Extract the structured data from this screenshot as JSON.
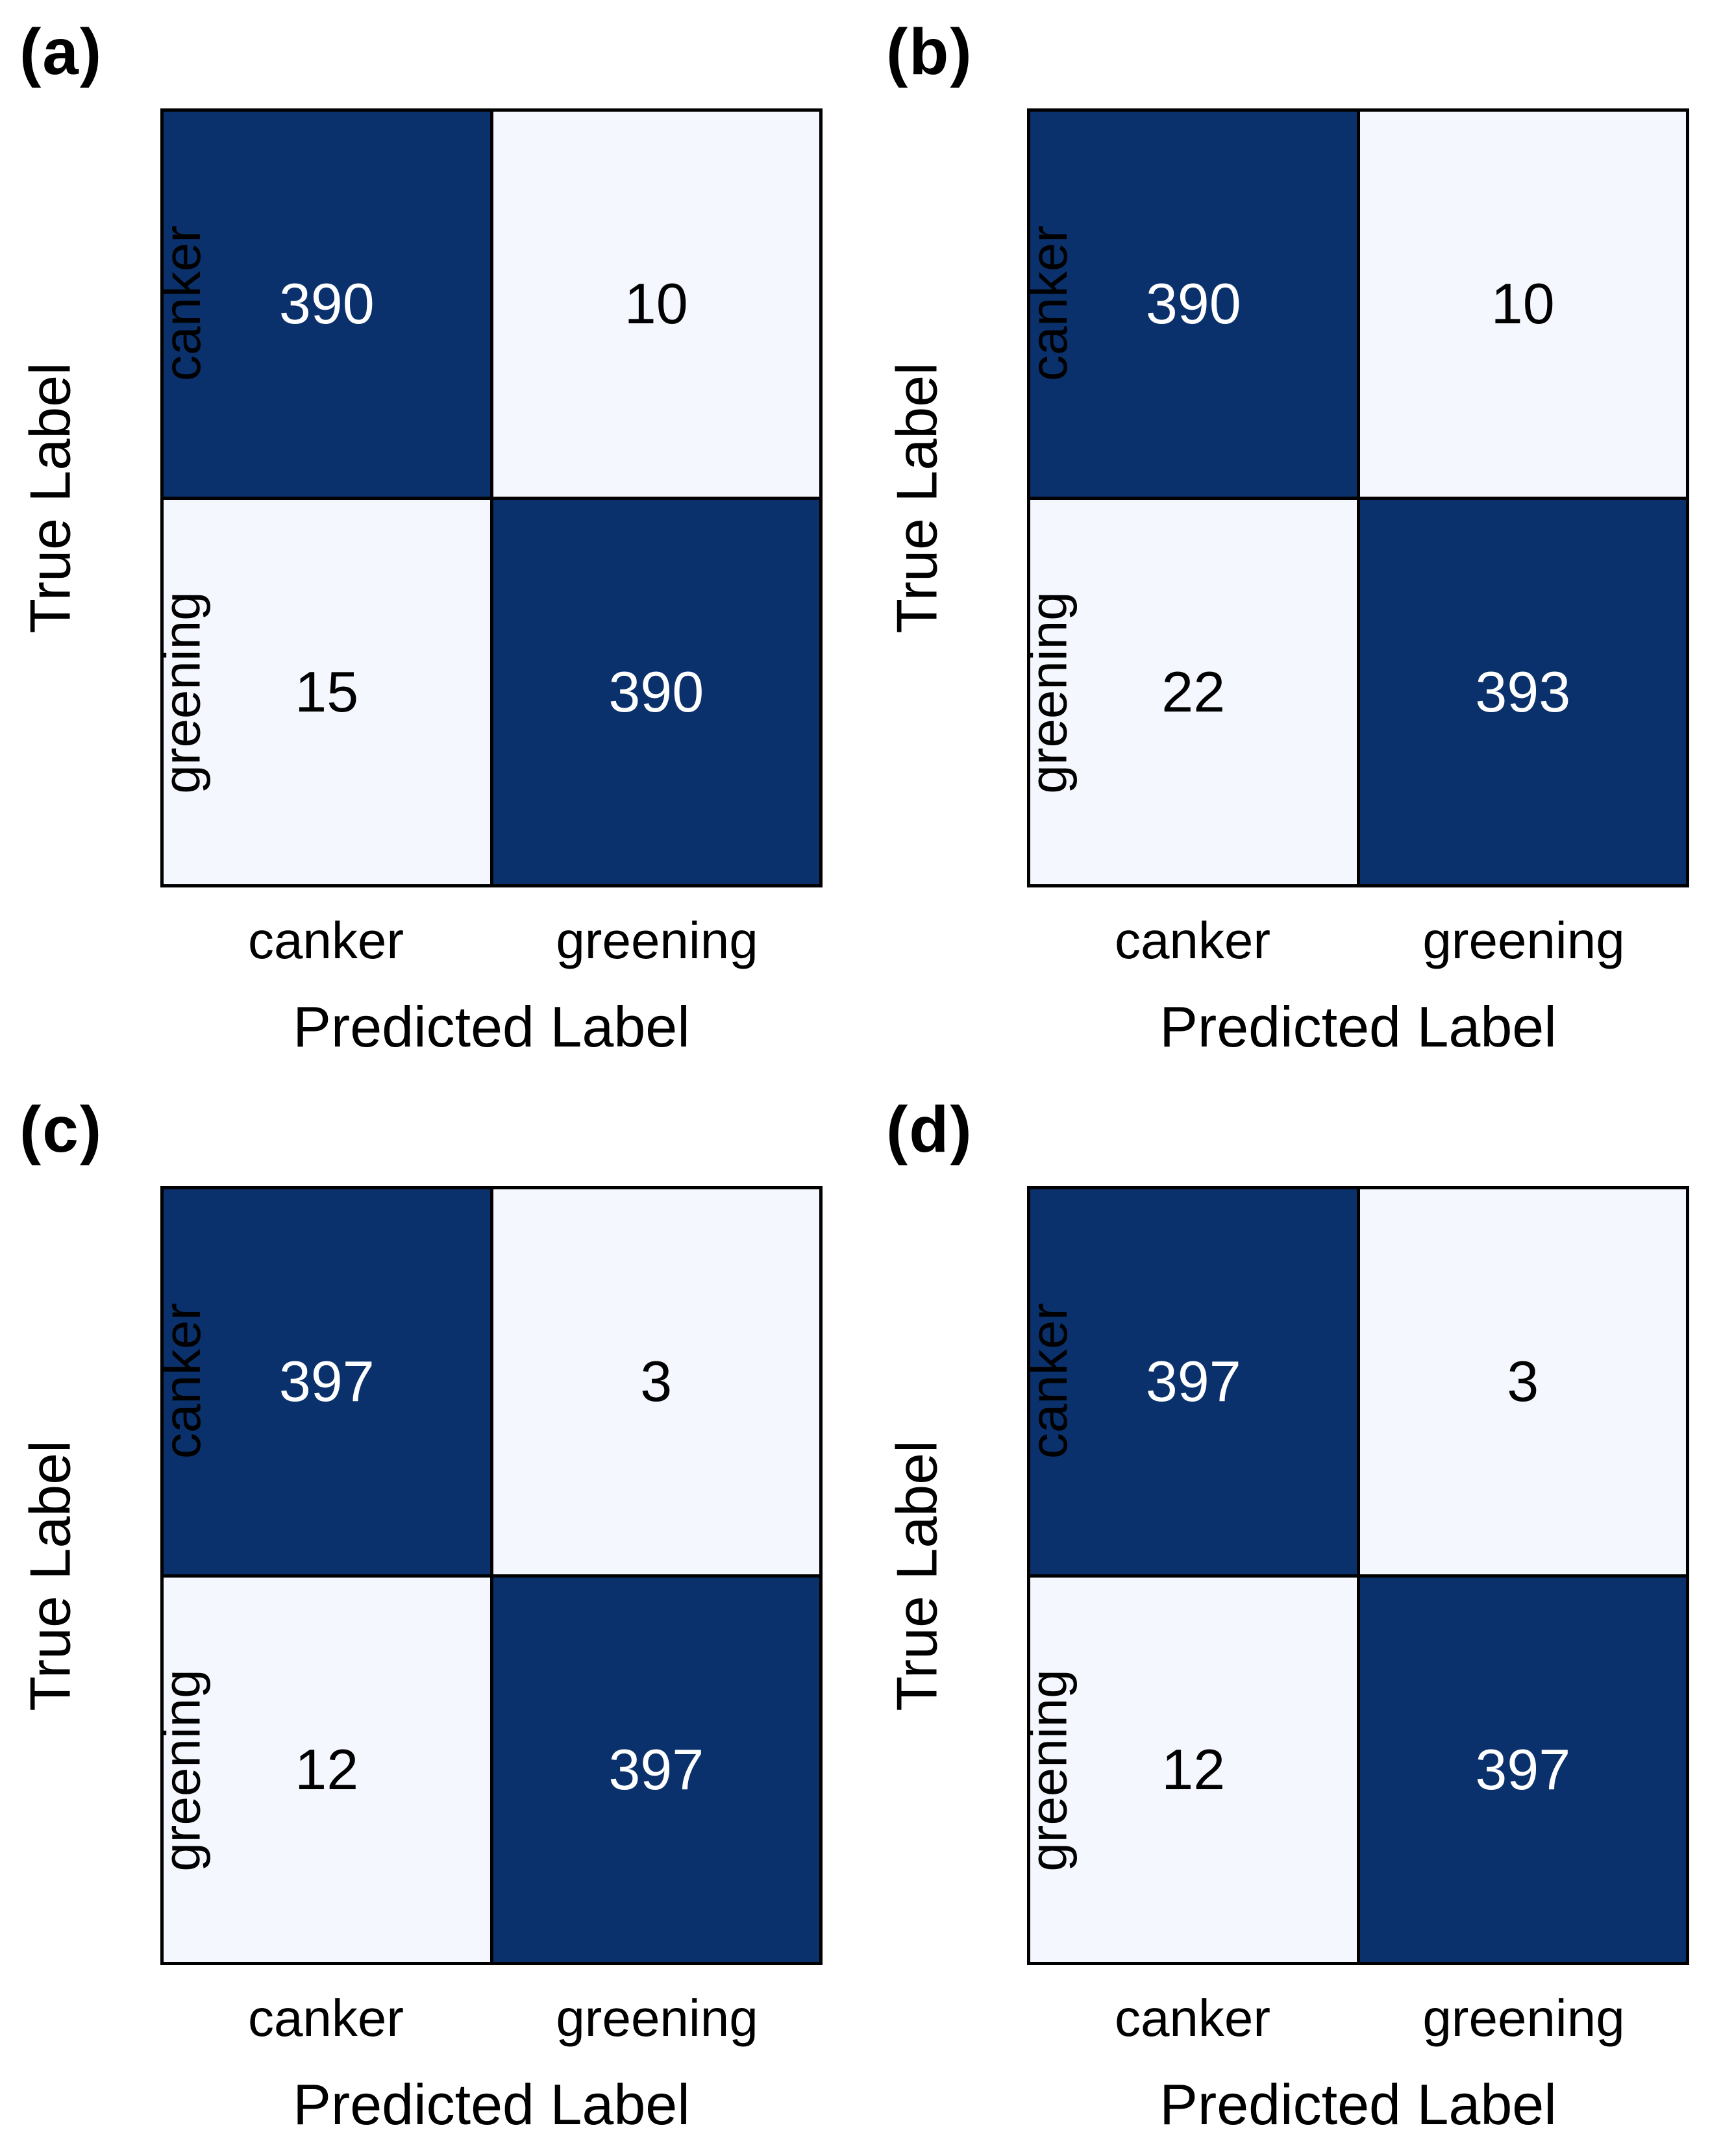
{
  "figure": {
    "background": "#ffffff",
    "colors": {
      "dark_cell": "#0a316b",
      "light_cell": "#f4f7fd",
      "grid_line": "#000000",
      "text_on_dark": "#ffffff",
      "text_on_light": "#000000"
    },
    "axis": {
      "x_title": "Predicted Label",
      "y_title": "True Label",
      "x_ticks": [
        "canker",
        "greening"
      ],
      "y_ticks": [
        "canker",
        "greening"
      ]
    },
    "panels": [
      {
        "label": "(a)",
        "matrix": [
          [
            390,
            10
          ],
          [
            15,
            390
          ]
        ]
      },
      {
        "label": "(b)",
        "matrix": [
          [
            390,
            10
          ],
          [
            22,
            393
          ]
        ]
      },
      {
        "label": "(c)",
        "matrix": [
          [
            397,
            3
          ],
          [
            12,
            397
          ]
        ]
      },
      {
        "label": "(d)",
        "matrix": [
          [
            397,
            3
          ],
          [
            12,
            397
          ]
        ]
      }
    ]
  },
  "chart_data": [
    {
      "type": "heatmap",
      "title": "(a)",
      "xlabel": "Predicted Label",
      "ylabel": "True Label",
      "x_categories": [
        "canker",
        "greening"
      ],
      "y_categories": [
        "canker",
        "greening"
      ],
      "values": [
        [
          390,
          10
        ],
        [
          15,
          390
        ]
      ],
      "colormap": "Blues",
      "legend": "none",
      "grid": "cell-borders"
    },
    {
      "type": "heatmap",
      "title": "(b)",
      "xlabel": "Predicted Label",
      "ylabel": "True Label",
      "x_categories": [
        "canker",
        "greening"
      ],
      "y_categories": [
        "canker",
        "greening"
      ],
      "values": [
        [
          390,
          10
        ],
        [
          22,
          393
        ]
      ],
      "colormap": "Blues",
      "legend": "none",
      "grid": "cell-borders"
    },
    {
      "type": "heatmap",
      "title": "(c)",
      "xlabel": "Predicted Label",
      "ylabel": "True Label",
      "x_categories": [
        "canker",
        "greening"
      ],
      "y_categories": [
        "canker",
        "greening"
      ],
      "values": [
        [
          397,
          3
        ],
        [
          12,
          397
        ]
      ],
      "colormap": "Blues",
      "legend": "none",
      "grid": "cell-borders"
    },
    {
      "type": "heatmap",
      "title": "(d)",
      "xlabel": "Predicted Label",
      "ylabel": "True Label",
      "x_categories": [
        "canker",
        "greening"
      ],
      "y_categories": [
        "canker",
        "greening"
      ],
      "values": [
        [
          397,
          3
        ],
        [
          12,
          397
        ]
      ],
      "colormap": "Blues",
      "legend": "none",
      "grid": "cell-borders"
    }
  ]
}
